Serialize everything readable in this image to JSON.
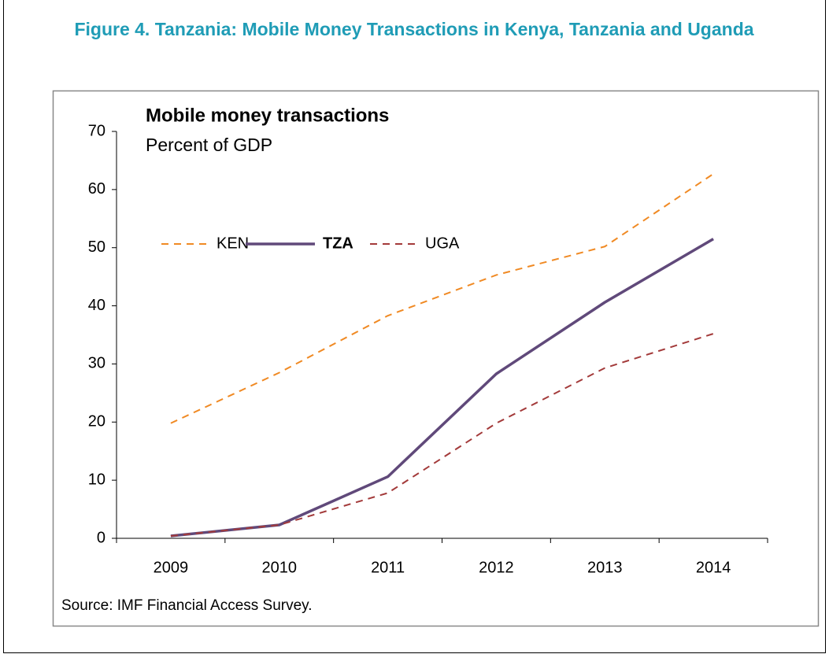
{
  "chart_data": {
    "type": "line",
    "title": "Figure 4. Tanzania: Mobile Money Transactions in Kenya, Tanzania and Uganda",
    "chart_title": "Mobile money transactions",
    "subtitle": "Percent of GDP",
    "source": "Source: IMF Financial Access Survey.",
    "categories": [
      "2009",
      "2010",
      "2011",
      "2012",
      "2013",
      "2014"
    ],
    "series": [
      {
        "name": "KEN",
        "color": "#f08a24",
        "dash": true,
        "highlight": false,
        "values": [
          19.8,
          28.5,
          38.3,
          45.3,
          50.2,
          62.7
        ]
      },
      {
        "name": "TZA",
        "color": "#60497a",
        "dash": false,
        "highlight": true,
        "values": [
          0.4,
          2.3,
          10.6,
          28.3,
          40.6,
          51.5
        ]
      },
      {
        "name": "UGA",
        "color": "#a33a3a",
        "dash": true,
        "highlight": false,
        "values": [
          0.4,
          2.3,
          7.8,
          19.8,
          29.3,
          35.2
        ]
      }
    ],
    "ylim": [
      0,
      70
    ],
    "yticks": [
      0,
      10,
      20,
      30,
      40,
      50,
      60,
      70
    ],
    "grid": false
  }
}
